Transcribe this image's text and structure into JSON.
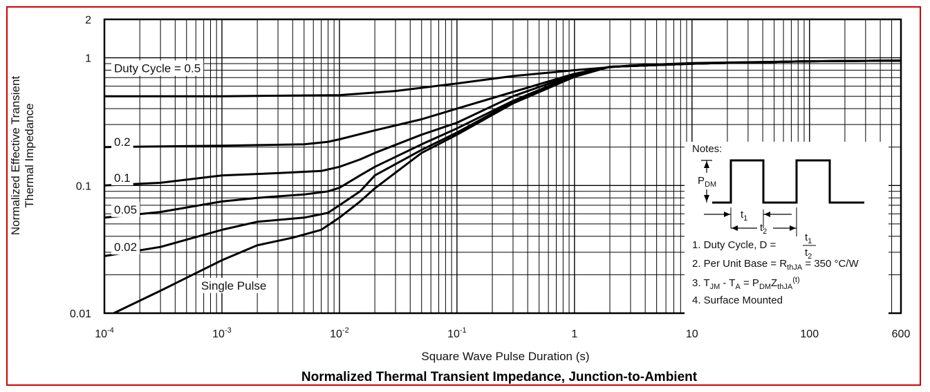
{
  "chart_data": {
    "type": "line",
    "title": "Normalized Thermal Transient Impedance, Junction-to-Ambient",
    "xlabel": "Square Wave Pulse Duration (s)",
    "ylabel_line1": "Normalized Effective Transient",
    "ylabel_line2": "Thermal Impedance",
    "x_scale": "log",
    "y_scale": "log",
    "xlim": [
      0.0001,
      600
    ],
    "ylim": [
      0.01,
      2
    ],
    "grid": true,
    "x_ticks": [
      {
        "value": 0.0001,
        "base": "10",
        "exp": "-4"
      },
      {
        "value": 0.001,
        "base": "10",
        "exp": "-3"
      },
      {
        "value": 0.01,
        "base": "10",
        "exp": "-2"
      },
      {
        "value": 0.1,
        "base": "10",
        "exp": "-1"
      },
      {
        "value": 1,
        "base": "1",
        "exp": ""
      },
      {
        "value": 10,
        "base": "10",
        "exp": ""
      },
      {
        "value": 100,
        "base": "100",
        "exp": ""
      },
      {
        "value": 600,
        "base": "600",
        "exp": ""
      }
    ],
    "y_ticks": [
      {
        "value": 2,
        "label": "2"
      },
      {
        "value": 1,
        "label": "1"
      },
      {
        "value": 0.1,
        "label": "0.1"
      },
      {
        "value": 0.01,
        "label": "0.01"
      }
    ],
    "series": [
      {
        "name": "Duty Cycle = 0.5",
        "label_at": [
          0.0001,
          0.83
        ],
        "points": [
          [
            0.0001,
            0.5
          ],
          [
            0.001,
            0.5
          ],
          [
            0.01,
            0.51
          ],
          [
            0.03,
            0.55
          ],
          [
            0.1,
            0.63
          ],
          [
            0.3,
            0.72
          ],
          [
            1,
            0.8
          ],
          [
            3,
            0.87
          ],
          [
            10,
            0.91
          ],
          [
            100,
            0.94
          ],
          [
            600,
            0.95
          ]
        ]
      },
      {
        "name": "0.2",
        "label_at": [
          0.0001,
          0.22
        ],
        "points": [
          [
            0.0001,
            0.2
          ],
          [
            0.001,
            0.205
          ],
          [
            0.002,
            0.207
          ],
          [
            0.005,
            0.21
          ],
          [
            0.008,
            0.22
          ],
          [
            0.01,
            0.23
          ],
          [
            0.02,
            0.27
          ],
          [
            0.05,
            0.33
          ],
          [
            0.1,
            0.4
          ],
          [
            0.3,
            0.54
          ],
          [
            1,
            0.75
          ],
          [
            2,
            0.85
          ],
          [
            10,
            0.9
          ],
          [
            100,
            0.94
          ],
          [
            600,
            0.95
          ]
        ]
      },
      {
        "name": "0.1",
        "label_at": [
          0.0001,
          0.115
        ],
        "points": [
          [
            0.0001,
            0.1
          ],
          [
            0.0003,
            0.105
          ],
          [
            0.001,
            0.12
          ],
          [
            0.003,
            0.125
          ],
          [
            0.007,
            0.13
          ],
          [
            0.01,
            0.14
          ],
          [
            0.015,
            0.16
          ],
          [
            0.02,
            0.18
          ],
          [
            0.05,
            0.25
          ],
          [
            0.1,
            0.31
          ],
          [
            0.3,
            0.5
          ],
          [
            1,
            0.74
          ],
          [
            2,
            0.85
          ],
          [
            10,
            0.9
          ],
          [
            100,
            0.94
          ],
          [
            600,
            0.95
          ]
        ]
      },
      {
        "name": "0.05",
        "label_at": [
          0.0001,
          0.065
        ],
        "points": [
          [
            0.0001,
            0.056
          ],
          [
            0.0003,
            0.062
          ],
          [
            0.001,
            0.075
          ],
          [
            0.002,
            0.08
          ],
          [
            0.005,
            0.085
          ],
          [
            0.008,
            0.09
          ],
          [
            0.01,
            0.096
          ],
          [
            0.015,
            0.12
          ],
          [
            0.02,
            0.14
          ],
          [
            0.05,
            0.21
          ],
          [
            0.1,
            0.28
          ],
          [
            0.3,
            0.46
          ],
          [
            1,
            0.73
          ],
          [
            2,
            0.85
          ],
          [
            10,
            0.9
          ],
          [
            100,
            0.94
          ],
          [
            600,
            0.95
          ]
        ]
      },
      {
        "name": "0.02",
        "label_at": [
          0.0001,
          0.033
        ],
        "points": [
          [
            0.0001,
            0.028
          ],
          [
            0.0003,
            0.033
          ],
          [
            0.001,
            0.045
          ],
          [
            0.002,
            0.052
          ],
          [
            0.005,
            0.056
          ],
          [
            0.008,
            0.061
          ],
          [
            0.01,
            0.07
          ],
          [
            0.015,
            0.09
          ],
          [
            0.02,
            0.12
          ],
          [
            0.05,
            0.19
          ],
          [
            0.1,
            0.26
          ],
          [
            0.3,
            0.45
          ],
          [
            1,
            0.72
          ],
          [
            2,
            0.85
          ],
          [
            10,
            0.9
          ],
          [
            100,
            0.94
          ],
          [
            600,
            0.95
          ]
        ]
      },
      {
        "name": "Single Pulse",
        "label_at": [
          0.00055,
          0.0165
        ],
        "points": [
          [
            0.00012,
            0.01
          ],
          [
            0.0003,
            0.015
          ],
          [
            0.001,
            0.026
          ],
          [
            0.002,
            0.034
          ],
          [
            0.004,
            0.039
          ],
          [
            0.007,
            0.045
          ],
          [
            0.01,
            0.056
          ],
          [
            0.015,
            0.075
          ],
          [
            0.02,
            0.095
          ],
          [
            0.05,
            0.18
          ],
          [
            0.1,
            0.25
          ],
          [
            0.3,
            0.44
          ],
          [
            1,
            0.71
          ],
          [
            2,
            0.85
          ],
          [
            10,
            0.9
          ],
          [
            100,
            0.94
          ],
          [
            600,
            0.95
          ]
        ]
      }
    ]
  },
  "notes": {
    "heading": "Notes:",
    "pdm_base": "P",
    "pdm_sub": "DM",
    "t1_base": "t",
    "t1_sub": "1",
    "t2_base": "t",
    "t2_sub": "2",
    "line1": "1. Duty Cycle, D =",
    "line2_pre": "2. Per Unit Base = R",
    "line2_sub": "thJA",
    "line2_post": " = 350 °C/W",
    "line3_a": "3. T",
    "line3_a_sub": "JM",
    "line3_b": " - T",
    "line3_b_sub": "A",
    "line3_c": " = P",
    "line3_c_sub": "DM",
    "line3_d": "Z",
    "line3_d_sub": "thJA",
    "line3_e": "(t)",
    "line4": "4. Surface Mounted"
  }
}
